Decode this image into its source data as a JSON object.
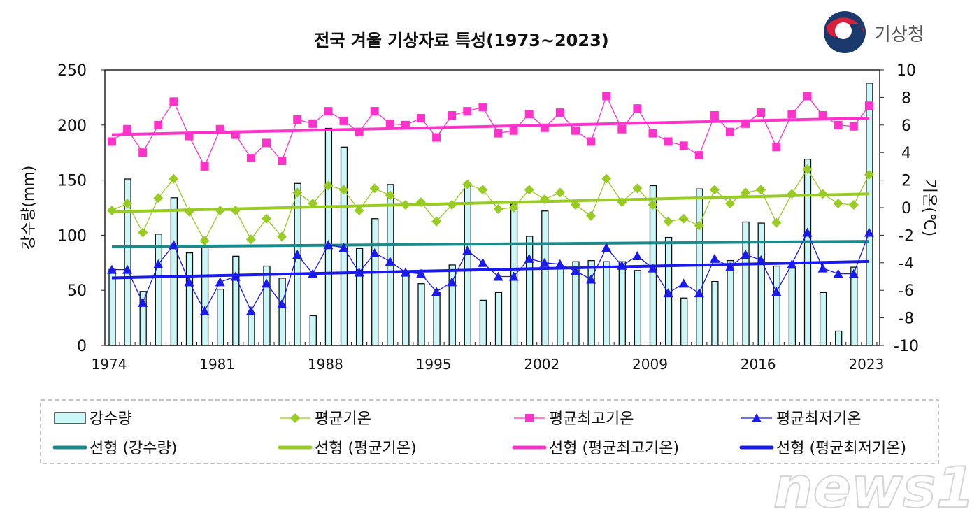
{
  "logo": {
    "text": "기상청",
    "colors": {
      "blue": "#1a3a6e",
      "red": "#d8203a"
    }
  },
  "watermark": "news1",
  "chart_data": {
    "type": "bar+line",
    "title": "전국 겨울 기상자료 특성(1973~2023)",
    "ylabel_left": "강수량(mm)",
    "ylabel_right": "기온(℃)",
    "ylim_left": [
      0,
      250
    ],
    "ylim_right": [
      -10,
      10
    ],
    "yticks_left": [
      0,
      50,
      100,
      150,
      200,
      250
    ],
    "yticks_right": [
      -10,
      -8,
      -6,
      -4,
      -2,
      0,
      2,
      4,
      6,
      8,
      10
    ],
    "xtick_labels": [
      "1974",
      "1981",
      "1988",
      "1995",
      "2002",
      "2009",
      "2016",
      "2023"
    ],
    "grid": false,
    "legend_placement": "bottom",
    "x": [
      1974,
      1975,
      1976,
      1977,
      1978,
      1979,
      1980,
      1981,
      1982,
      1983,
      1984,
      1985,
      1986,
      1987,
      1988,
      1989,
      1990,
      1991,
      1992,
      1993,
      1994,
      1995,
      1996,
      1997,
      1998,
      1999,
      2000,
      2001,
      2002,
      2003,
      2004,
      2005,
      2006,
      2007,
      2008,
      2009,
      2010,
      2011,
      2012,
      2013,
      2014,
      2015,
      2016,
      2017,
      2018,
      2019,
      2020,
      2021,
      2022,
      2023
    ],
    "series": [
      {
        "name": "강수량",
        "kind": "bar",
        "axis": "left",
        "color": "#ccf7f7",
        "values": [
          69,
          151,
          49,
          101,
          134,
          84,
          89,
          51,
          81,
          30,
          72,
          61,
          147,
          27,
          197,
          180,
          88,
          115,
          146,
          66,
          56,
          48,
          73,
          144,
          41,
          48,
          128,
          99,
          122,
          72,
          76,
          77,
          76,
          76,
          68,
          145,
          98,
          43,
          142,
          58,
          77,
          112,
          111,
          72,
          70,
          169,
          48,
          13,
          71,
          238
        ]
      },
      {
        "name": "평균기온",
        "kind": "line",
        "marker": "diamond",
        "axis": "right",
        "color": "#99cc22",
        "values": [
          -0.2,
          0.3,
          -1.8,
          0.7,
          2.1,
          -0.3,
          -2.4,
          -0.2,
          -0.2,
          -2.3,
          -0.8,
          -2.1,
          1.1,
          0.3,
          1.6,
          1.3,
          -0.2,
          1.4,
          0.9,
          0.2,
          0.4,
          -1.0,
          0.2,
          1.7,
          1.3,
          -0.1,
          0.0,
          1.3,
          0.6,
          1.1,
          0.2,
          -0.6,
          2.1,
          0.4,
          1.4,
          0.2,
          -1.0,
          -0.8,
          -1.3,
          1.3,
          0.3,
          1.1,
          1.3,
          -1.1,
          1.0,
          2.8,
          1.0,
          0.3,
          0.2,
          2.4
        ]
      },
      {
        "name": "평균최고기온",
        "kind": "line",
        "marker": "square",
        "axis": "right",
        "color": "#ff33cc",
        "values": [
          4.8,
          5.7,
          4.0,
          6.0,
          7.7,
          5.2,
          3.0,
          5.7,
          5.3,
          3.6,
          4.7,
          3.4,
          6.4,
          6.1,
          7.0,
          6.3,
          5.5,
          7.0,
          6.1,
          6.0,
          6.5,
          5.1,
          6.7,
          7.0,
          7.3,
          5.4,
          5.6,
          6.8,
          5.8,
          6.9,
          5.6,
          4.8,
          8.1,
          5.7,
          7.2,
          5.4,
          4.8,
          4.5,
          3.8,
          6.7,
          5.5,
          6.1,
          6.9,
          4.4,
          6.8,
          8.1,
          6.7,
          6.0,
          5.9,
          7.4
        ]
      },
      {
        "name": "평균최저기온",
        "kind": "line",
        "marker": "triangle",
        "axis": "right",
        "color": "#1a1aee",
        "values": [
          -4.5,
          -4.5,
          -6.9,
          -4.1,
          -2.7,
          -5.4,
          -7.5,
          -5.4,
          -5.0,
          -7.5,
          -5.5,
          -7.0,
          -3.4,
          -4.8,
          -2.7,
          -2.9,
          -4.7,
          -3.3,
          -3.9,
          -4.7,
          -4.8,
          -6.1,
          -5.4,
          -3.1,
          -4.0,
          -5.0,
          -5.0,
          -3.7,
          -4.0,
          -4.1,
          -4.6,
          -5.2,
          -2.9,
          -4.2,
          -3.5,
          -4.4,
          -6.2,
          -5.5,
          -6.2,
          -3.7,
          -4.3,
          -3.4,
          -3.8,
          -6.1,
          -4.1,
          -1.8,
          -4.4,
          -4.8,
          -4.8,
          -1.8
        ]
      }
    ],
    "trends": [
      {
        "name": "선형 (강수량)",
        "axis": "left",
        "color": "#1a8a8a",
        "start": 89.5,
        "end": 94.5
      },
      {
        "name": "선형 (평균기온)",
        "axis": "right",
        "color": "#99cc22",
        "start": -0.3,
        "end": 1.0
      },
      {
        "name": "선형 (평균최고기온)",
        "axis": "right",
        "color": "#ff33cc",
        "start": 5.3,
        "end": 6.5
      },
      {
        "name": "선형 (평균최저기온)",
        "axis": "right",
        "color": "#1a1aee",
        "start": -5.1,
        "end": -3.9
      }
    ]
  }
}
